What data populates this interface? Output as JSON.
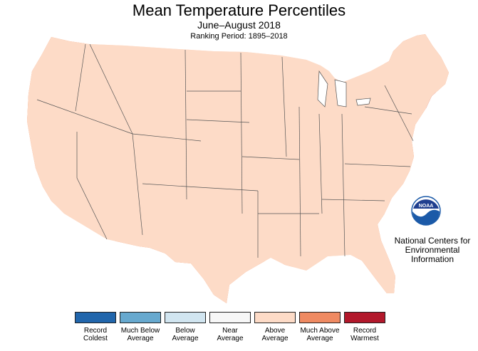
{
  "title": "Mean Temperature Percentiles",
  "subtitle": "June–August 2018",
  "ranking_period": "Ranking Period: 1895–2018",
  "agency": {
    "line1": "National Centers for",
    "line2": "Environmental",
    "line3": "Information",
    "logo_text": "NOAA"
  },
  "legend": [
    {
      "label": "Record Coldest",
      "color": "#2166ac"
    },
    {
      "label": "Much Below Average",
      "color": "#67a9cf"
    },
    {
      "label": "Below Average",
      "color": "#d1e5f0"
    },
    {
      "label": "Near Average",
      "color": "#f7f7f7"
    },
    {
      "label": "Above Average",
      "color": "#fddbc7"
    },
    {
      "label": "Much Above Average",
      "color": "#ef8a62"
    },
    {
      "label": "Record Warmest",
      "color": "#b2182b"
    }
  ],
  "colors": {
    "above": "#fddbc7",
    "much_above": "#ef8a62",
    "record_warm": "#b2182b",
    "near": "#f7f7f7",
    "below": "#d1e5f0",
    "border": "#333333",
    "noaa_blue": "#1b5aa8"
  }
}
